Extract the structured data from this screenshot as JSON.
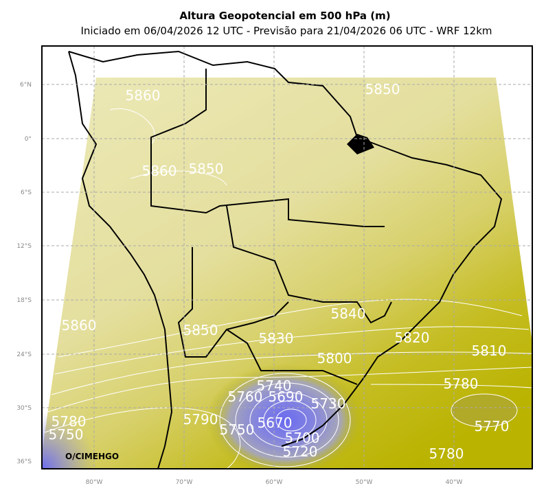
{
  "header": {
    "title": "Altura Geopotencial em 500 hPa (m)",
    "subtitle": "Iniciado em 06/04/2026 12 UTC - Previsão para 21/04/2026 06 UTC - WRF 12km"
  },
  "lat_labels": [
    "6°N",
    "0°",
    "6°S",
    "12°S",
    "18°S",
    "24°S",
    "30°S",
    "36°S"
  ],
  "lon_labels": [
    "80°W",
    "70°W",
    "60°W",
    "50°W",
    "40°W"
  ],
  "contour_labels": [
    "5860",
    "5850",
    "5860",
    "5850",
    "5860",
    "5850",
    "5830",
    "5840",
    "5820",
    "5800",
    "5810",
    "5780",
    "5740",
    "5760",
    "5690",
    "5730",
    "5790",
    "5780",
    "5750",
    "5750",
    "5770",
    "5670",
    "5780",
    "5720",
    "5700"
  ],
  "watermark": "O/CIMEHGO"
}
